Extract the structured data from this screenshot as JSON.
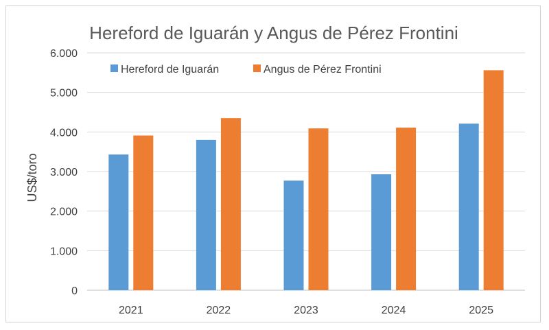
{
  "chart_data": {
    "type": "bar",
    "title": "Hereford de Iguarán y Angus de Pérez Frontini",
    "xlabel": "",
    "ylabel": "US$/toro",
    "categories": [
      "2021",
      "2022",
      "2023",
      "2024",
      "2025"
    ],
    "ylim": [
      0,
      6000
    ],
    "yticks": [
      0,
      1000,
      2000,
      3000,
      4000,
      5000,
      6000
    ],
    "ytick_labels": [
      "0",
      "1.000",
      "2.000",
      "3.000",
      "4.000",
      "5.000",
      "6.000"
    ],
    "grid": true,
    "legend_position": "top",
    "series": [
      {
        "name": "Hereford de Iguarán",
        "color": "#5b9bd5",
        "values": [
          3430,
          3800,
          2770,
          2930,
          4210
        ]
      },
      {
        "name": "Angus de Pérez Frontini",
        "color": "#ed7d31",
        "values": [
          3910,
          4350,
          4090,
          4110,
          5560
        ]
      }
    ]
  }
}
